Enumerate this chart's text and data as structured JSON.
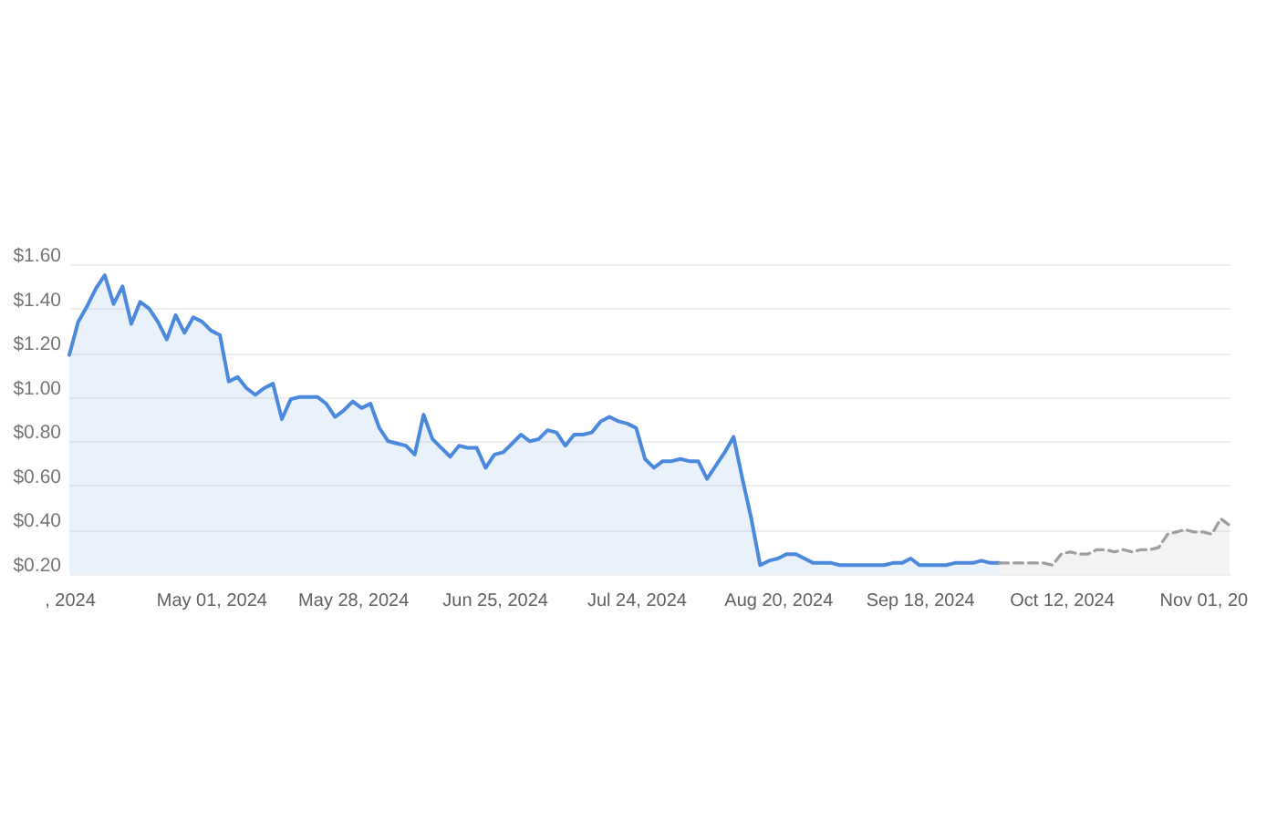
{
  "chart_data": {
    "type": "area",
    "categories": [
      ", 2024",
      null,
      null,
      null,
      null,
      null,
      null,
      null,
      null,
      null,
      null,
      null,
      null,
      null,
      null,
      null,
      "May 01, 2024",
      null,
      null,
      null,
      null,
      null,
      null,
      null,
      null,
      null,
      null,
      null,
      null,
      null,
      null,
      null,
      "May 28, 2024",
      null,
      null,
      null,
      null,
      null,
      null,
      null,
      null,
      null,
      null,
      null,
      null,
      null,
      null,
      null,
      "Jun 25, 2024",
      null,
      null,
      null,
      null,
      null,
      null,
      null,
      null,
      null,
      null,
      null,
      null,
      null,
      null,
      null,
      "Jul 24, 2024",
      null,
      null,
      null,
      null,
      null,
      null,
      null,
      null,
      null,
      null,
      null,
      null,
      null,
      null,
      null,
      "Aug 20, 2024",
      null,
      null,
      null,
      null,
      null,
      null,
      null,
      null,
      null,
      null,
      null,
      null,
      null,
      null,
      null,
      "Sep 18, 2024",
      null,
      null,
      null,
      null,
      null,
      null,
      null,
      null,
      null,
      null,
      null,
      null,
      null,
      null,
      null,
      "Oct 12, 2024",
      null,
      null,
      null,
      null,
      null,
      null,
      null,
      null,
      null,
      null,
      null,
      null,
      null,
      null,
      null,
      "Nov 01, 20",
      null,
      null,
      null
    ],
    "series": [
      {
        "color": "#4a89dc",
        "line_style": "solid",
        "values": [
          1.19,
          1.34,
          1.41,
          1.49,
          1.55,
          1.42,
          1.5,
          1.33,
          1.43,
          1.4,
          1.34,
          1.26,
          1.37,
          1.29,
          1.36,
          1.34,
          1.3,
          1.28,
          1.07,
          1.09,
          1.04,
          1.01,
          1.04,
          1.06,
          0.9,
          0.99,
          1.0,
          1.0,
          1.0,
          0.97,
          0.91,
          0.94,
          0.98,
          0.95,
          0.97,
          0.86,
          0.8,
          0.79,
          0.78,
          0.74,
          0.92,
          0.81,
          0.77,
          0.73,
          0.78,
          0.77,
          0.77,
          0.68,
          0.74,
          0.75,
          0.79,
          0.83,
          0.8,
          0.81,
          0.85,
          0.84,
          0.78,
          0.83,
          0.83,
          0.84,
          0.89,
          0.91,
          0.89,
          0.88,
          0.86,
          0.72,
          0.68,
          0.71,
          0.71,
          0.72,
          0.71,
          0.71,
          0.63,
          0.69,
          0.75,
          0.82,
          0.63,
          0.45,
          0.24,
          0.26,
          0.27,
          0.29,
          0.29,
          0.27,
          0.25,
          0.25,
          0.25,
          0.24,
          0.24,
          0.24,
          0.24,
          0.24,
          0.24,
          0.25,
          0.25,
          0.27,
          0.24,
          0.24,
          0.24,
          0.24,
          0.25,
          0.25,
          0.25,
          0.26,
          0.25,
          0.25,
          null,
          null,
          null,
          null,
          null,
          null,
          null,
          null,
          null,
          null,
          null,
          null,
          null,
          null,
          null,
          null,
          null,
          null,
          null,
          null,
          null,
          null,
          null,
          null,
          null,
          null
        ]
      },
      {
        "color": "#9e9e9e",
        "line_style": "dashed",
        "values": [
          null,
          null,
          null,
          null,
          null,
          null,
          null,
          null,
          null,
          null,
          null,
          null,
          null,
          null,
          null,
          null,
          null,
          null,
          null,
          null,
          null,
          null,
          null,
          null,
          null,
          null,
          null,
          null,
          null,
          null,
          null,
          null,
          null,
          null,
          null,
          null,
          null,
          null,
          null,
          null,
          null,
          null,
          null,
          null,
          null,
          null,
          null,
          null,
          null,
          null,
          null,
          null,
          null,
          null,
          null,
          null,
          null,
          null,
          null,
          null,
          null,
          null,
          null,
          null,
          null,
          null,
          null,
          null,
          null,
          null,
          null,
          null,
          null,
          null,
          null,
          null,
          null,
          null,
          null,
          null,
          null,
          null,
          null,
          null,
          null,
          null,
          null,
          null,
          null,
          null,
          null,
          null,
          null,
          null,
          null,
          null,
          null,
          null,
          null,
          null,
          null,
          null,
          null,
          null,
          null,
          0.25,
          0.25,
          0.25,
          0.25,
          0.25,
          0.25,
          0.24,
          0.29,
          0.3,
          0.29,
          0.29,
          0.31,
          0.31,
          0.3,
          0.31,
          0.3,
          0.31,
          0.31,
          0.32,
          0.38,
          0.39,
          0.4,
          0.39,
          0.39,
          0.38,
          0.45,
          0.42
        ]
      }
    ],
    "ylim": [
      0.2,
      1.6
    ],
    "yticks": [
      {
        "value": 0.2,
        "label": "$0.20"
      },
      {
        "value": 0.4,
        "label": "$0.40"
      },
      {
        "value": 0.6,
        "label": "$0.60"
      },
      {
        "value": 0.8,
        "label": "$0.80"
      },
      {
        "value": 1.0,
        "label": "$1.00"
      },
      {
        "value": 1.2,
        "label": "$1.20"
      },
      {
        "value": 1.4,
        "label": "$1.40"
      },
      {
        "value": 1.6,
        "label": "$1.60"
      }
    ],
    "grid": "y"
  }
}
